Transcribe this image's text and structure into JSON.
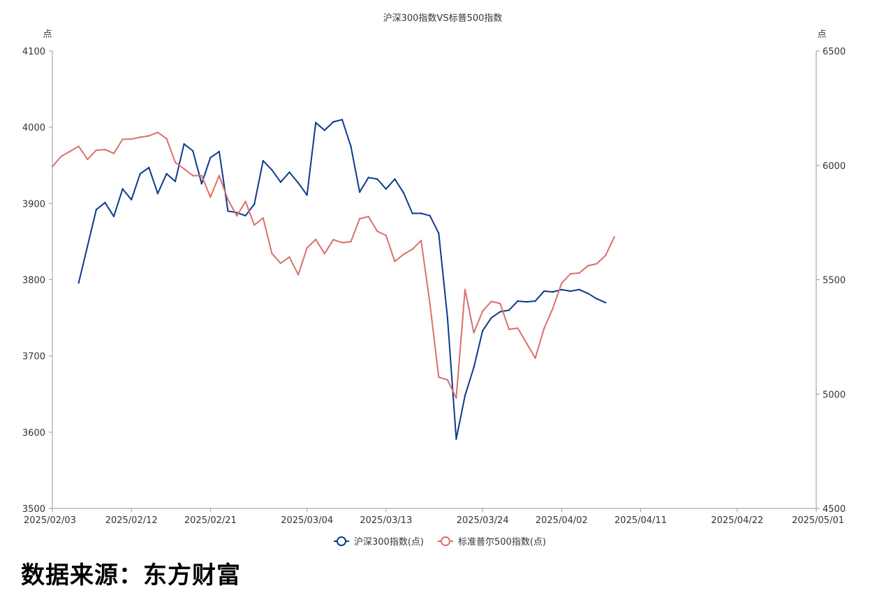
{
  "chart_data": {
    "type": "line",
    "title": "沪深300指数VS标普500指数",
    "y_left_label": "点",
    "y_right_label": "点",
    "y_left_lim": [
      3500,
      4100
    ],
    "y_right_lim": [
      4500,
      6500
    ],
    "y_left_ticks": [
      "3500",
      "3600",
      "3700",
      "3800",
      "3900",
      "4000",
      "4100"
    ],
    "y_right_ticks": [
      "4500",
      "5000",
      "5500",
      "6000",
      "6500"
    ],
    "x_lim": [
      "2025/02/03",
      "2025/05/01"
    ],
    "x_ticks": [
      "2025/02/03",
      "2025/02/12",
      "2025/02/21",
      "2025/03/04",
      "2025/03/13",
      "2025/03/24",
      "2025/04/02",
      "2025/04/11",
      "2025/04/22",
      "2025/05/01"
    ],
    "legend_position": "bottom-center",
    "series": [
      {
        "name": "沪深300指数(点)",
        "axis": "left",
        "color": "#0b3a8c",
        "points": [
          [
            "2025/02/06",
            3796
          ],
          [
            "2025/02/07",
            3844
          ],
          [
            "2025/02/08",
            3892
          ],
          [
            "2025/02/09",
            3901
          ],
          [
            "2025/02/10",
            3883
          ],
          [
            "2025/02/11",
            3919
          ],
          [
            "2025/02/12",
            3905
          ],
          [
            "2025/02/13",
            3939
          ],
          [
            "2025/02/14",
            3947
          ],
          [
            "2025/02/15",
            3913
          ],
          [
            "2025/02/16",
            3939
          ],
          [
            "2025/02/17",
            3929
          ],
          [
            "2025/02/18",
            3978
          ],
          [
            "2025/02/19",
            3969
          ],
          [
            "2025/02/20",
            3926
          ],
          [
            "2025/02/21",
            3960
          ],
          [
            "2025/02/22",
            3968
          ],
          [
            "2025/02/23",
            3890
          ],
          [
            "2025/02/24",
            3888
          ],
          [
            "2025/02/25",
            3884
          ],
          [
            "2025/02/26",
            3899
          ],
          [
            "2025/02/27",
            3956
          ],
          [
            "2025/02/28",
            3944
          ],
          [
            "2025/03/01",
            3928
          ],
          [
            "2025/03/02",
            3941
          ],
          [
            "2025/03/03",
            3927
          ],
          [
            "2025/03/04",
            3911
          ],
          [
            "2025/03/05",
            4006
          ],
          [
            "2025/03/06",
            3996
          ],
          [
            "2025/03/07",
            4007
          ],
          [
            "2025/03/08",
            4010
          ],
          [
            "2025/03/09",
            3975
          ],
          [
            "2025/03/10",
            3915
          ],
          [
            "2025/03/11",
            3934
          ],
          [
            "2025/03/12",
            3932
          ],
          [
            "2025/03/13",
            3919
          ],
          [
            "2025/03/14",
            3932
          ],
          [
            "2025/03/15",
            3914
          ],
          [
            "2025/03/16",
            3887
          ],
          [
            "2025/03/17",
            3887
          ],
          [
            "2025/03/18",
            3884
          ],
          [
            "2025/03/19",
            3861
          ],
          [
            "2025/03/20",
            3750
          ],
          [
            "2025/03/21",
            3591
          ],
          [
            "2025/03/22",
            3648
          ],
          [
            "2025/03/23",
            3685
          ],
          [
            "2025/03/24",
            3733
          ],
          [
            "2025/03/25",
            3750
          ],
          [
            "2025/03/26",
            3758
          ],
          [
            "2025/03/27",
            3760
          ],
          [
            "2025/03/28",
            3772
          ],
          [
            "2025/03/29",
            3771
          ],
          [
            "2025/03/30",
            3772
          ],
          [
            "2025/03/31",
            3785
          ],
          [
            "2025/04/01",
            3784
          ],
          [
            "2025/04/02",
            3787
          ],
          [
            "2025/04/03",
            3785
          ],
          [
            "2025/04/04",
            3787
          ],
          [
            "2025/04/05",
            3782
          ],
          [
            "2025/04/06",
            3775
          ],
          [
            "2025/04/07",
            3770
          ]
        ]
      },
      {
        "name": "标准普尔500指数(点)",
        "axis": "right",
        "color": "#d9706c",
        "points": [
          [
            "2025/02/03",
            5995
          ],
          [
            "2025/02/04",
            6039
          ],
          [
            "2025/02/05",
            6061
          ],
          [
            "2025/02/06",
            6083
          ],
          [
            "2025/02/07",
            6026
          ],
          [
            "2025/02/08",
            6066
          ],
          [
            "2025/02/09",
            6069
          ],
          [
            "2025/02/10",
            6052
          ],
          [
            "2025/02/11",
            6114
          ],
          [
            "2025/02/12",
            6115
          ],
          [
            "2025/02/13",
            6123
          ],
          [
            "2025/02/14",
            6129
          ],
          [
            "2025/02/15",
            6144
          ],
          [
            "2025/02/16",
            6117
          ],
          [
            "2025/02/17",
            6013
          ],
          [
            "2025/02/18",
            5985
          ],
          [
            "2025/02/19",
            5955
          ],
          [
            "2025/02/20",
            5955
          ],
          [
            "2025/02/21",
            5861
          ],
          [
            "2025/02/22",
            5955
          ],
          [
            "2025/02/23",
            5850
          ],
          [
            "2025/02/24",
            5779
          ],
          [
            "2025/02/25",
            5842
          ],
          [
            "2025/02/26",
            5739
          ],
          [
            "2025/02/27",
            5770
          ],
          [
            "2025/02/28",
            5615
          ],
          [
            "2025/03/01",
            5572
          ],
          [
            "2025/03/02",
            5599
          ],
          [
            "2025/03/03",
            5522
          ],
          [
            "2025/03/04",
            5639
          ],
          [
            "2025/03/05",
            5676
          ],
          [
            "2025/03/06",
            5614
          ],
          [
            "2025/03/07",
            5675
          ],
          [
            "2025/03/08",
            5662
          ],
          [
            "2025/03/09",
            5666
          ],
          [
            "2025/03/10",
            5767
          ],
          [
            "2025/03/11",
            5776
          ],
          [
            "2025/03/12",
            5712
          ],
          [
            "2025/03/13",
            5694
          ],
          [
            "2025/03/14",
            5580
          ],
          [
            "2025/03/15",
            5611
          ],
          [
            "2025/03/16",
            5633
          ],
          [
            "2025/03/17",
            5671
          ],
          [
            "2025/03/18",
            5396
          ],
          [
            "2025/03/19",
            5074
          ],
          [
            "2025/03/20",
            5062
          ],
          [
            "2025/03/21",
            4983
          ],
          [
            "2025/03/22",
            5457
          ],
          [
            "2025/03/23",
            5268
          ],
          [
            "2025/03/24",
            5363
          ],
          [
            "2025/03/25",
            5405
          ],
          [
            "2025/03/26",
            5396
          ],
          [
            "2025/03/27",
            5283
          ],
          [
            "2025/03/28",
            5288
          ],
          [
            "2025/03/29",
            5223
          ],
          [
            "2025/03/30",
            5157
          ],
          [
            "2025/03/31",
            5287
          ],
          [
            "2025/04/01",
            5375
          ],
          [
            "2025/04/02",
            5484
          ],
          [
            "2025/04/03",
            5526
          ],
          [
            "2025/04/04",
            5529
          ],
          [
            "2025/04/05",
            5561
          ],
          [
            "2025/04/06",
            5570
          ],
          [
            "2025/04/07",
            5606
          ],
          [
            "2025/04/08",
            5687
          ]
        ]
      }
    ]
  },
  "source": "数据来源：东方财富"
}
